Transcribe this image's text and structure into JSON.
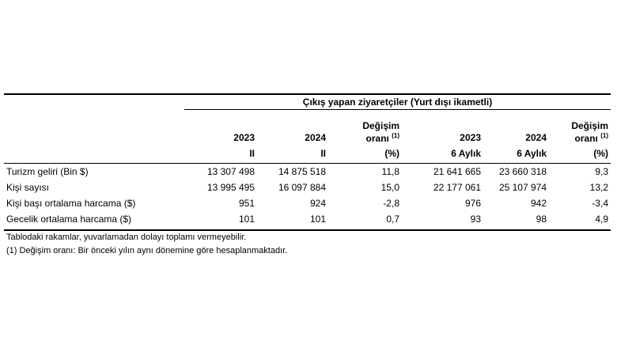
{
  "table": {
    "group_title": "Çıkış yapan ziyaretçiler (Yurt dışı ikametli)",
    "columns": [
      {
        "line1": "",
        "line2": "2023",
        "line3": "II",
        "sup": ""
      },
      {
        "line1": "",
        "line2": "2024",
        "line3": "II",
        "sup": ""
      },
      {
        "line1": "Değişim",
        "line2": "oranı",
        "line3": "(%)",
        "sup": "(1)"
      },
      {
        "line1": "",
        "line2": "2023",
        "line3": "6 Aylık",
        "sup": ""
      },
      {
        "line1": "",
        "line2": "2024",
        "line3": "6 Aylık",
        "sup": ""
      },
      {
        "line1": "Değişim",
        "line2": "oranı",
        "line3": "(%)",
        "sup": "(1)"
      }
    ],
    "rows": [
      {
        "label": "Turizm geliri (Bin $)",
        "values": [
          "13 307 498",
          "14 875 518",
          "11,8",
          "21 641 665",
          "23 660 318",
          "9,3"
        ]
      },
      {
        "label": "Kişi sayısı",
        "values": [
          "13 995 495",
          "16 097 884",
          "15,0",
          "22 177 061",
          "25 107 974",
          "13,2"
        ]
      },
      {
        "label": "Kişi başı ortalama harcama ($)",
        "values": [
          "951",
          "924",
          "-2,8",
          "976",
          "942",
          "-3,4"
        ]
      },
      {
        "label": "Gecelik ortalama harcama ($)",
        "values": [
          "101",
          "101",
          "0,7",
          "93",
          "98",
          "4,9"
        ]
      }
    ]
  },
  "notes": {
    "note1": "Tablodaki rakamlar, yuvarlamadan dolayı toplamı vermeyebilir.",
    "note2": "(1) Değişim oranı: Bir önceki yılın aynı dönemine göre hesaplanmaktadır."
  }
}
